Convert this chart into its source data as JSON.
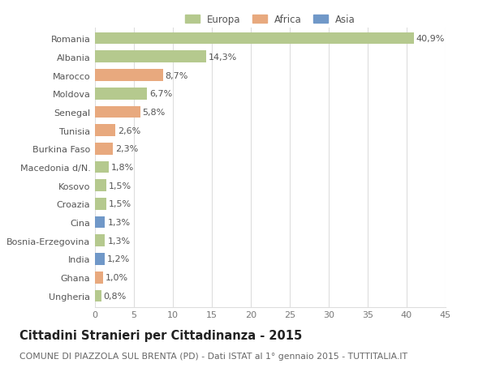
{
  "categories": [
    "Romania",
    "Albania",
    "Marocco",
    "Moldova",
    "Senegal",
    "Tunisia",
    "Burkina Faso",
    "Macedonia d/N.",
    "Kosovo",
    "Croazia",
    "Cina",
    "Bosnia-Erzegovina",
    "India",
    "Ghana",
    "Ungheria"
  ],
  "values": [
    40.9,
    14.3,
    8.7,
    6.7,
    5.8,
    2.6,
    2.3,
    1.8,
    1.5,
    1.5,
    1.3,
    1.3,
    1.2,
    1.0,
    0.8
  ],
  "labels": [
    "40,9%",
    "14,3%",
    "8,7%",
    "6,7%",
    "5,8%",
    "2,6%",
    "2,3%",
    "1,8%",
    "1,5%",
    "1,5%",
    "1,3%",
    "1,3%",
    "1,2%",
    "1,0%",
    "0,8%"
  ],
  "continent": [
    "Europa",
    "Europa",
    "Africa",
    "Europa",
    "Africa",
    "Africa",
    "Africa",
    "Europa",
    "Europa",
    "Europa",
    "Asia",
    "Europa",
    "Asia",
    "Africa",
    "Europa"
  ],
  "colors": {
    "Europa": "#b5c98e",
    "Africa": "#e8a97e",
    "Asia": "#7098c8"
  },
  "title": "Cittadini Stranieri per Cittadinanza - 2015",
  "subtitle": "COMUNE DI PIAZZOLA SUL BRENTA (PD) - Dati ISTAT al 1° gennaio 2015 - TUTTITALIA.IT",
  "xlim": [
    0,
    45
  ],
  "xticks": [
    0,
    5,
    10,
    15,
    20,
    25,
    30,
    35,
    40,
    45
  ],
  "bg_color": "#ffffff",
  "grid_color": "#dddddd",
  "bar_height": 0.65,
  "label_fontsize": 8.0,
  "tick_fontsize": 8.0,
  "title_fontsize": 10.5,
  "subtitle_fontsize": 7.8
}
